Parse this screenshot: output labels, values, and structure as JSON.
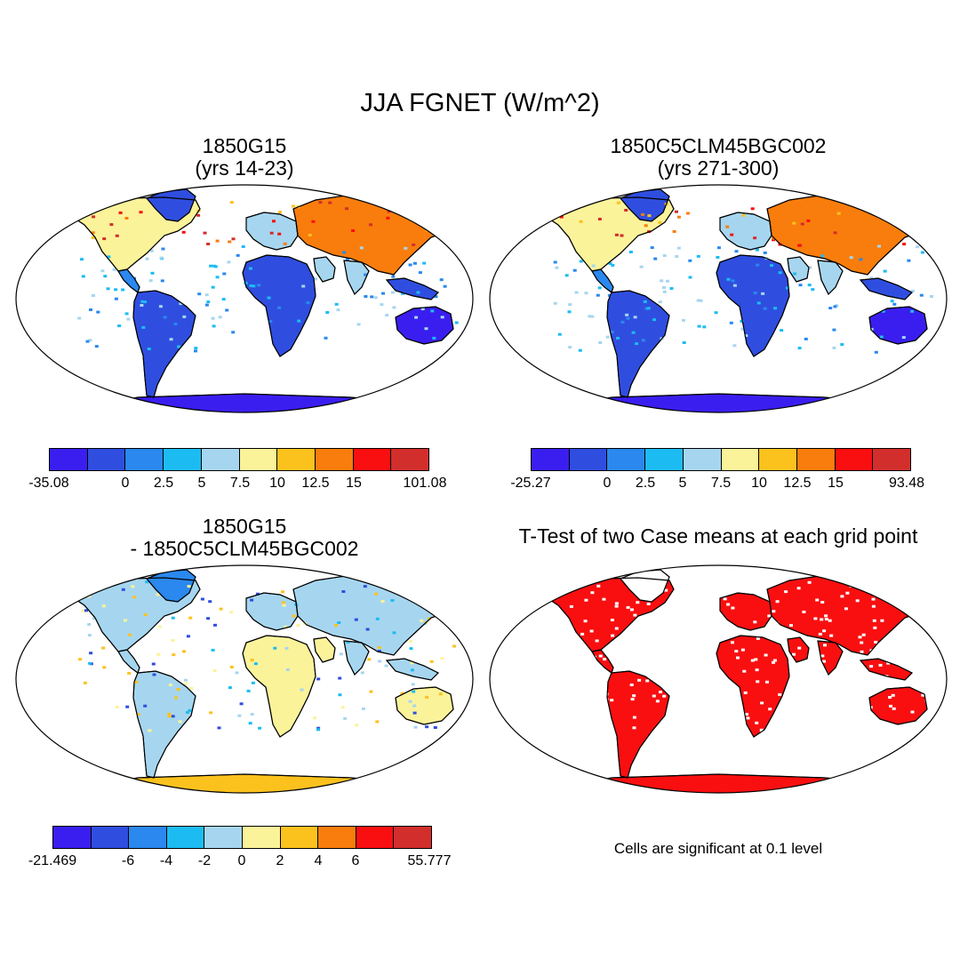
{
  "title": "JJA FGNET (W/m^2)",
  "palette": [
    "#3a1ef0",
    "#2f4ee0",
    "#2a88ee",
    "#1cbcf3",
    "#a6d6ef",
    "#fbf39a",
    "#fbc21e",
    "#f97d0c",
    "#f90f10",
    "#d22e2c"
  ],
  "panels": [
    {
      "title_line1": "1850G15",
      "title_line2": "(yrs 14-23)",
      "colorbar_labels": [
        "-35.08",
        "0",
        "2.5",
        "5",
        "7.5",
        "10",
        "12.5",
        "15",
        "101.08"
      ]
    },
    {
      "title_line1": "1850C5CLM45BGC002",
      "title_line2": "(yrs 271-300)",
      "colorbar_labels": [
        "-25.27",
        "0",
        "2.5",
        "5",
        "7.5",
        "10",
        "12.5",
        "15",
        "93.48"
      ]
    },
    {
      "title_line1": "1850G15",
      "title_line2": "- 1850C5CLM45BGC002",
      "colorbar_labels": [
        "-21.469",
        "-6",
        "-4",
        "-2",
        "0",
        "2",
        "4",
        "6",
        "55.777"
      ]
    },
    {
      "title_line1": "T-Test of two Case means at each grid point",
      "note": "Cells are significant at 0.1 level"
    }
  ]
}
